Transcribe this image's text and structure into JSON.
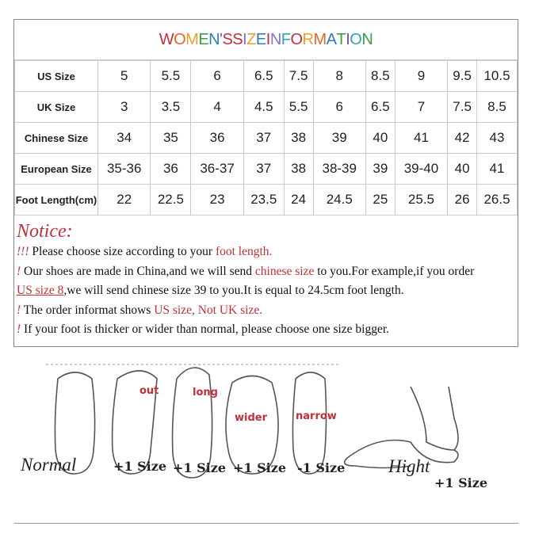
{
  "title": {
    "text": "WOMEN'S SIZE INFORMATION",
    "letter_colors": [
      "#c0303a",
      "#e0662a",
      "#e7a22b",
      "#3e9b48",
      "#2c7fb8",
      "#7b4ea3",
      "#c0303a",
      "#2ca5b8",
      "#c0303a",
      "#8a6fd0",
      "#e7a22b",
      "#2c7fb8",
      "#3e9b48",
      "#c0303a",
      "#8a6fd0",
      "#2ca5b8",
      "#c0303a",
      "#e7a22b",
      "#e0662a",
      "#2c7fb8",
      "#3e9b48",
      "#7b4ea3",
      "#2ca5b8",
      "#3e9b48"
    ]
  },
  "table": {
    "rows": [
      {
        "label": "US Size",
        "values": [
          "5",
          "5.5",
          "6",
          "6.5",
          "7.5",
          "8",
          "8.5",
          "9",
          "9.5",
          "10.5"
        ]
      },
      {
        "label": "UK Size",
        "values": [
          "3",
          "3.5",
          "4",
          "4.5",
          "5.5",
          "6",
          "6.5",
          "7",
          "7.5",
          "8.5"
        ]
      },
      {
        "label": "Chinese Size",
        "values": [
          "34",
          "35",
          "36",
          "37",
          "38",
          "39",
          "40",
          "41",
          "42",
          "43"
        ]
      },
      {
        "label": "European Size",
        "values": [
          "35-36",
          "36",
          "36-37",
          "37",
          "38",
          "38-39",
          "39",
          "39-40",
          "40",
          "41"
        ]
      },
      {
        "label": "Foot Length(cm)",
        "values": [
          "22",
          "22.5",
          "23",
          "23.5",
          "24",
          "24.5",
          "25",
          "25.5",
          "26",
          "26.5"
        ]
      }
    ]
  },
  "notice": {
    "heading": "Notice:",
    "l1": {
      "mark": "!!!",
      "a": " Please choose size according to your ",
      "b": "foot length."
    },
    "l2": {
      "mark": "!",
      "a": " Our shoes are made in China,and we will send ",
      "b": "chinese size",
      "c": " to you.For example,if you order"
    },
    "l3": {
      "a": "US size 8",
      "b": ",we will send chinese size 39 to you.It is equal to 24.5cm foot length."
    },
    "l4": {
      "mark": "!",
      "a": " The order informat shows ",
      "b": "US size, Not UK size."
    },
    "l5": {
      "mark": "!",
      "a": " If your foot is thicker or wider than normal, please choose one size bigger."
    }
  },
  "feet": {
    "normal": "Normal",
    "f2": "+1 Size",
    "f3": "+1 Size",
    "f4": "+1 Size",
    "f5": "-1 Size",
    "high": "Hight",
    "high_size": "+1 Size",
    "out": "out",
    "long": "long",
    "wider": "wider",
    "narrow": "narrow"
  }
}
